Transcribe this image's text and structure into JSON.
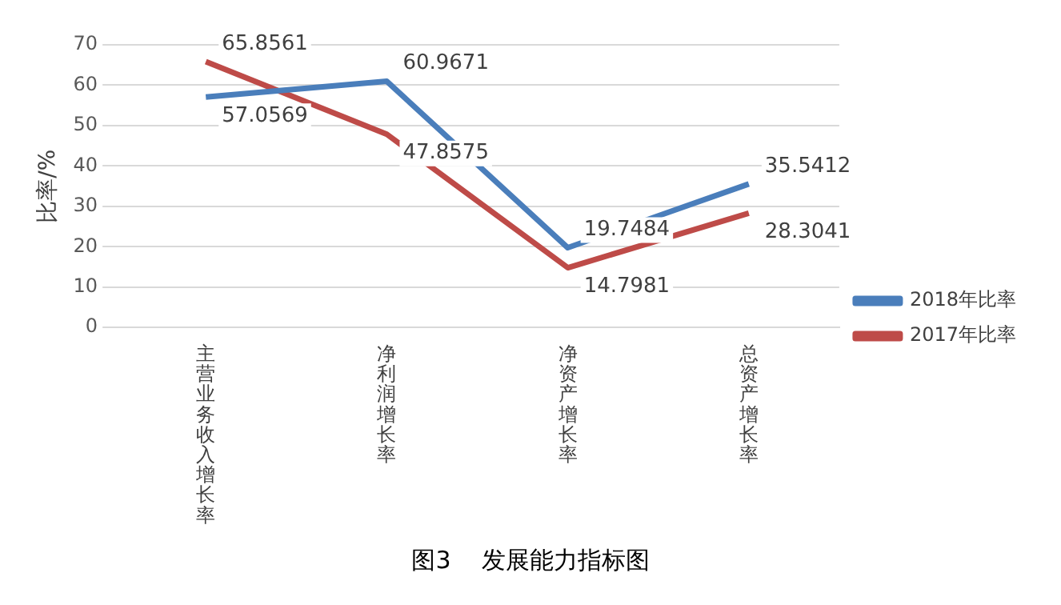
{
  "chart_data": {
    "type": "line",
    "title": "图3    发展能力指标图",
    "ylabel": "比率/%",
    "categories": [
      "主营业务收入增长率",
      "净利润增长率",
      "净资产增长率",
      "总资产增长率"
    ],
    "series": [
      {
        "name": "2018年比率",
        "color": "#4a7ebb",
        "values": [
          57.0569,
          60.9671,
          19.7484,
          35.5412
        ]
      },
      {
        "name": "2017年比率",
        "color": "#be4b48",
        "values": [
          65.8561,
          47.8575,
          14.7981,
          28.3041
        ]
      }
    ],
    "ylim": [
      0,
      70
    ],
    "yticks": [
      0,
      10,
      20,
      30,
      40,
      50,
      60,
      70
    ],
    "grid": "y",
    "legend": "right",
    "data_labels": true,
    "marker": "none",
    "line_style": "solid"
  }
}
